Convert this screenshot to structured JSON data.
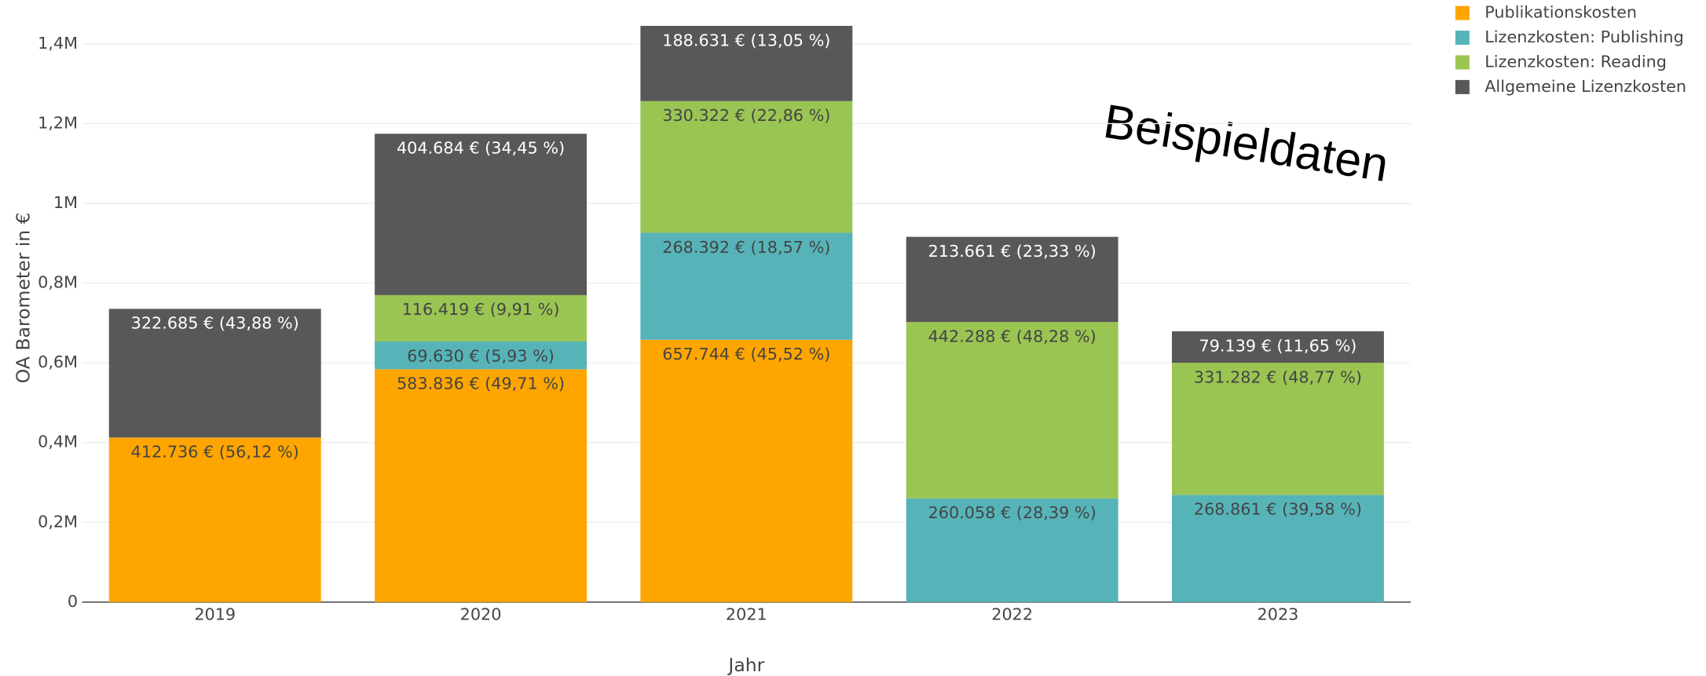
{
  "chart_data": {
    "type": "stacked_bar",
    "annotation": "Beispieldaten",
    "x_label": "Jahr",
    "y_label": "OA Barometer in €",
    "categories": [
      "2019",
      "2020",
      "2021",
      "2022",
      "2023"
    ],
    "ylim": [
      0,
      1450000
    ],
    "yticks": [
      0,
      {
        "value": 200000,
        "label": "0,2M"
      },
      {
        "value": 400000,
        "label": "0,4M"
      },
      {
        "value": 600000,
        "label": "0,6M"
      },
      {
        "value": 800000,
        "label": "0,8M"
      },
      {
        "value": 1000000,
        "label": "1M"
      },
      {
        "value": 1200000,
        "label": "1,2M"
      },
      {
        "value": 1400000,
        "label": "1,4M"
      }
    ],
    "grid": true,
    "legend": "top-right",
    "series": [
      {
        "name": "Publikationskosten",
        "color": "#FFA500",
        "label_color": "#444444",
        "values": [
          412736,
          583836,
          657744,
          null,
          null
        ],
        "value_labels": [
          "412.736 € (56,12 %)",
          "583.836 € (49,71 %)",
          "657.744 € (45,52 %)",
          null,
          null
        ]
      },
      {
        "name": "Lizenzkosten: Publishing",
        "color": "#56B4B9",
        "label_color": "#444444",
        "values": [
          null,
          69630,
          268392,
          260058,
          268861
        ],
        "value_labels": [
          null,
          "69.630 € (5,93 %)",
          "268.392 € (18,57 %)",
          "260.058 € (28,39 %)",
          "268.861 € (39,58 %)"
        ]
      },
      {
        "name": "Lizenzkosten: Reading",
        "color": "#9BC553",
        "label_color": "#444444",
        "values": [
          null,
          116419,
          330322,
          442288,
          331282
        ],
        "value_labels": [
          null,
          "116.419 € (9,91 %)",
          "330.322 € (22,86 %)",
          "442.288 € (48,28 %)",
          "331.282 € (48,77 %)"
        ]
      },
      {
        "name": "Allgemeine Lizenzkosten",
        "color": "#585858",
        "label_color": "#ffffff",
        "values": [
          322685,
          404684,
          188631,
          213661,
          79139
        ],
        "value_labels": [
          "322.685 € (43,88 %)",
          "404.684 € (34,45 %)",
          "188.631 € (13,05 %)",
          "213.661 € (23,33 %)",
          "79.139 € (11,65 %)"
        ]
      }
    ]
  }
}
